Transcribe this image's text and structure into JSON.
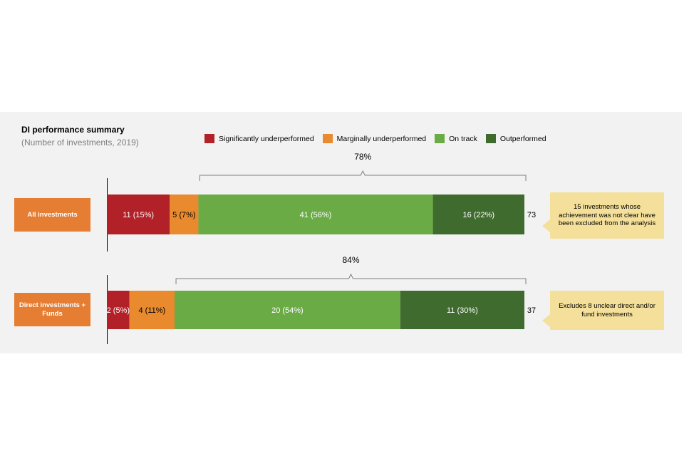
{
  "chart_data": {
    "type": "bar",
    "orientation": "horizontal",
    "stacked": true,
    "title": "DI performance summary",
    "subtitle": "(Number of investments, 2019)",
    "series": [
      {
        "name": "Significantly underperformed",
        "color": "#b22028"
      },
      {
        "name": "Marginally underperformed",
        "color": "#e98a2e"
      },
      {
        "name": "On track",
        "color": "#6aab45"
      },
      {
        "name": "Outperformed",
        "color": "#3f6b2f"
      }
    ],
    "rows": [
      {
        "label": "All investments",
        "values": [
          11,
          5,
          41,
          16
        ],
        "value_labels": [
          "11 (15%)",
          "5 (7%)",
          "41 (56%)",
          "16 (22%)"
        ],
        "total": "73",
        "bracket_label": "78%",
        "note": "15 investments whose achievement was not clear have been excluded from the analysis"
      },
      {
        "label": "Direct investments + Funds",
        "values": [
          2,
          4,
          20,
          11
        ],
        "value_labels": [
          "2 (5%)",
          "4 (11%)",
          "20 (54%)",
          "11 (30%)"
        ],
        "total": "37",
        "bracket_label": "84%",
        "note": "Excludes 8 unclear direct and/or fund investments"
      }
    ]
  },
  "colors": {
    "label_box": "#e57e33",
    "note_box": "#f4e09a",
    "panel_bg": "#f2f2f2"
  }
}
